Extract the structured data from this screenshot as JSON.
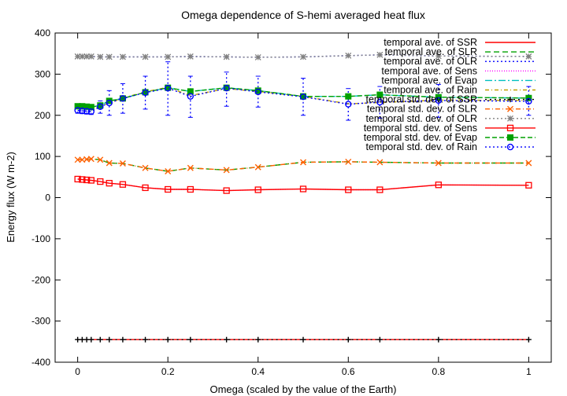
{
  "chart_data": {
    "type": "line",
    "title": "Omega dependence of S-hemi averaged heat flux",
    "xlabel": "Omega (scaled by the value of the Earth)",
    "ylabel": "Energy flux (W m-2)",
    "xlim": [
      -0.05,
      1.05
    ],
    "ylim": [
      -400,
      400
    ],
    "xticks": [
      0,
      0.2,
      0.4,
      0.6,
      0.8,
      1
    ],
    "yticks": [
      -400,
      -300,
      -200,
      -100,
      0,
      100,
      200,
      300,
      400
    ],
    "grid": false,
    "legend_position": "top-right",
    "x": [
      0,
      0.01,
      0.02,
      0.03,
      0.05,
      0.07,
      0.1,
      0.15,
      0.2,
      0.25,
      0.33,
      0.4,
      0.5,
      0.6,
      0.67,
      0.8,
      1.0
    ],
    "series": [
      {
        "name": "temporal ave. of SSR",
        "color": "#ff0000",
        "dash": "",
        "values": [
          -345,
          -345,
          -345,
          -345,
          -345,
          -345,
          -345,
          -345,
          -345,
          -345,
          -345,
          -345,
          -345,
          -345,
          -345,
          -345,
          -345
        ]
      },
      {
        "name": "temporal ave. of SLR",
        "color": "#00a000",
        "dash": "7,4",
        "values": [
          92,
          92,
          93,
          94,
          92,
          84,
          83,
          72,
          64,
          72,
          67,
          74,
          86,
          87,
          86,
          84,
          84
        ]
      },
      {
        "name": "temporal ave. of OLR",
        "color": "#0000ff",
        "dash": "2,3",
        "values": [
          343,
          343,
          343,
          343,
          342,
          342,
          342,
          342,
          342,
          343,
          342,
          341,
          342,
          345,
          347,
          344,
          343
        ]
      },
      {
        "name": "temporal ave. of Sens",
        "color": "#ff00ff",
        "dash": "1,2",
        "values": [
          45,
          44,
          43,
          42,
          39,
          35,
          32,
          24,
          20,
          20,
          17,
          19,
          21,
          19,
          19,
          31,
          30
        ]
      },
      {
        "name": "temporal ave. of Evap",
        "color": "#00c0c0",
        "dash": "9,3,2,3",
        "values": [
          222,
          222,
          221,
          220,
          224,
          235,
          241,
          256,
          267,
          258,
          267,
          260,
          246,
          246,
          250,
          244,
          242
        ]
      },
      {
        "name": "temporal ave. of Rain",
        "color": "#c0a000",
        "dash": "5,3,1,3",
        "values": [
          217,
          216,
          216,
          215,
          221,
          230,
          242,
          257,
          268,
          248,
          265,
          258,
          246,
          228,
          231,
          237,
          236
        ]
      },
      {
        "name": "temporal std. dev. of SSR",
        "color": "#000000",
        "dash": "2,4",
        "marker": "plus",
        "values": [
          -345,
          -345,
          -345,
          -345,
          -345,
          -345,
          -345,
          -345,
          -345,
          -345,
          -345,
          -345,
          -345,
          -345,
          -345,
          -345,
          -345
        ]
      },
      {
        "name": "temporal std. dev. of SLR",
        "color": "#ff6000",
        "dash": "6,3,1,3",
        "marker": "cross",
        "values": [
          92,
          92,
          93,
          94,
          92,
          84,
          83,
          72,
          64,
          72,
          67,
          74,
          86,
          87,
          86,
          84,
          84
        ]
      },
      {
        "name": "temporal std. dev. of OLR",
        "color": "#808080",
        "dash": "2,3",
        "marker": "star",
        "values": [
          343,
          343,
          343,
          343,
          342,
          342,
          342,
          342,
          342,
          343,
          342,
          341,
          342,
          345,
          347,
          344,
          343
        ]
      },
      {
        "name": "temporal std. dev. of Sens",
        "color": "#ff0000",
        "dash": "",
        "marker": "square",
        "values": [
          45,
          44,
          43,
          42,
          39,
          35,
          32,
          24,
          20,
          20,
          17,
          19,
          21,
          19,
          19,
          31,
          30
        ]
      },
      {
        "name": "temporal std. dev. of Evap",
        "color": "#00a000",
        "dash": "6,3",
        "marker": "filled-square",
        "values": [
          222,
          222,
          221,
          220,
          224,
          235,
          241,
          256,
          267,
          258,
          267,
          260,
          246,
          246,
          250,
          244,
          242
        ]
      },
      {
        "name": "temporal std. dev. of Rain",
        "color": "#0000ff",
        "dash": "2,3",
        "marker": "circle",
        "values": [
          212,
          211,
          210,
          209,
          221,
          230,
          241,
          255,
          266,
          246,
          266,
          257,
          245,
          227,
          232,
          236,
          234
        ]
      }
    ],
    "error_bars": {
      "series": "temporal std. dev. of Rain",
      "color": "#0000ff",
      "lower": [
        205,
        204,
        203,
        202,
        205,
        200,
        205,
        215,
        200,
        195,
        222,
        220,
        200,
        188,
        193,
        195,
        200
      ],
      "upper": [
        220,
        219,
        218,
        217,
        235,
        260,
        277,
        295,
        330,
        295,
        305,
        295,
        290,
        265,
        270,
        275,
        270
      ]
    }
  }
}
